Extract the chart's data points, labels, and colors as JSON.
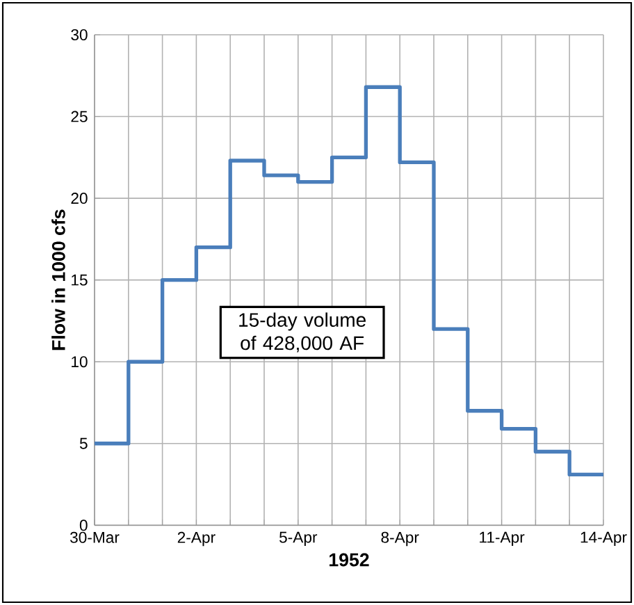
{
  "chart_data": {
    "type": "step",
    "xlabel": "1952",
    "ylabel": "Flow in 1000 cfs",
    "x": [
      "1952-03-30",
      "1952-03-31",
      "1952-04-01",
      "1952-04-02",
      "1952-04-03",
      "1952-04-04",
      "1952-04-05",
      "1952-04-06",
      "1952-04-07",
      "1952-04-08",
      "1952-04-09",
      "1952-04-10",
      "1952-04-11",
      "1952-04-12",
      "1952-04-13",
      "1952-04-14"
    ],
    "series": [
      {
        "color": "#4a7ebb",
        "values": [
          5,
          10,
          15,
          17,
          22.3,
          21.4,
          21,
          22.5,
          26.8,
          22.2,
          12,
          7,
          5.9,
          4.5,
          3.1,
          3.1
        ]
      }
    ],
    "xlim": [
      "1952-03-30",
      "1952-04-14"
    ],
    "xticks": [
      {
        "value": "1952-03-30",
        "label": "30-Mar"
      },
      {
        "value": "1952-03-31",
        "label": null
      },
      {
        "value": "1952-04-01",
        "label": null
      },
      {
        "value": "1952-04-02",
        "label": "2-Apr"
      },
      {
        "value": "1952-04-03",
        "label": null
      },
      {
        "value": "1952-04-04",
        "label": null
      },
      {
        "value": "1952-04-05",
        "label": "5-Apr"
      },
      {
        "value": "1952-04-06",
        "label": null
      },
      {
        "value": "1952-04-07",
        "label": null
      },
      {
        "value": "1952-04-08",
        "label": "8-Apr"
      },
      {
        "value": "1952-04-09",
        "label": null
      },
      {
        "value": "1952-04-10",
        "label": null
      },
      {
        "value": "1952-04-11",
        "label": "11-Apr"
      },
      {
        "value": "1952-04-12",
        "label": null
      },
      {
        "value": "1952-04-13",
        "label": null
      },
      {
        "value": "1952-04-14",
        "label": "14-Apr"
      }
    ],
    "ylim": [
      0,
      30
    ],
    "yticks": [
      0,
      5,
      10,
      15,
      20,
      25,
      30
    ],
    "grid": true,
    "line_style": "solid",
    "marker": "none",
    "annotations": [
      "15-day volume of 428,000 AF"
    ]
  }
}
